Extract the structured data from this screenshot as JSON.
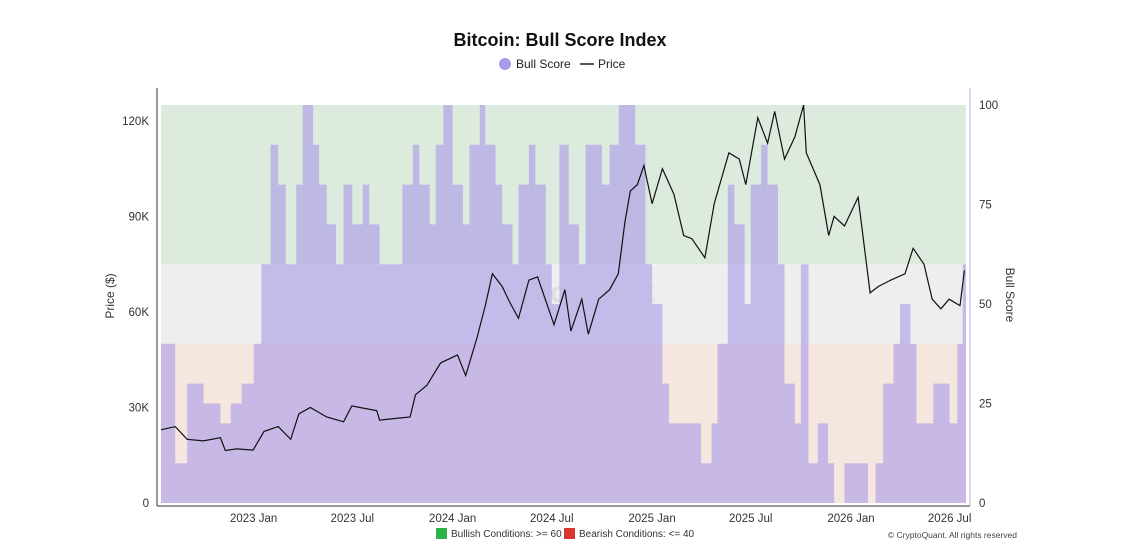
{
  "chart_data": {
    "type": "area",
    "title": "Bitcoin: Bull Score Index",
    "legend": [
      "Bull Score",
      "Price"
    ],
    "legend_placement": "top-center",
    "x_ticks": [
      "2023 Jan",
      "2023 Jul",
      "2024 Jan",
      "2024 Jul",
      "2025 Jan",
      "2025 Jul",
      "2026 Jan",
      "2026 Jul"
    ],
    "left_axis": {
      "label": "Price ($)",
      "ticks": [
        "0",
        "30K",
        "60K",
        "90K",
        "120K"
      ],
      "range": [
        0,
        125000
      ]
    },
    "right_axis": {
      "label": "Bull Score",
      "ticks": [
        "0",
        "25",
        "50",
        "75",
        "100"
      ],
      "range": [
        0,
        100
      ]
    },
    "zones": [
      {
        "name": "bullish",
        "from": 60,
        "to": 100,
        "color": "#dcebde"
      },
      {
        "name": "neutral",
        "from": 40,
        "to": 60,
        "color": "#eeeeee"
      },
      {
        "name": "bearish",
        "from": 0,
        "to": 40,
        "color": "#f6e6e0"
      }
    ],
    "series": [
      {
        "name": "Bull Score",
        "axis": "right",
        "color": "#a99be8",
        "points": [
          [
            "2022-07-15",
            40
          ],
          [
            "2022-08-01",
            40
          ],
          [
            "2022-08-10",
            10
          ],
          [
            "2022-09-01",
            30
          ],
          [
            "2022-10-01",
            25
          ],
          [
            "2022-11-01",
            20
          ],
          [
            "2022-11-20",
            25
          ],
          [
            "2022-12-10",
            30
          ],
          [
            "2023-01-01",
            40
          ],
          [
            "2023-01-15",
            60
          ],
          [
            "2023-02-01",
            90
          ],
          [
            "2023-02-15",
            80
          ],
          [
            "2023-03-01",
            60
          ],
          [
            "2023-03-20",
            80
          ],
          [
            "2023-04-01",
            100
          ],
          [
            "2023-04-20",
            90
          ],
          [
            "2023-05-01",
            80
          ],
          [
            "2023-05-15",
            70
          ],
          [
            "2023-06-01",
            60
          ],
          [
            "2023-06-15",
            80
          ],
          [
            "2023-07-01",
            70
          ],
          [
            "2023-07-20",
            80
          ],
          [
            "2023-08-01",
            70
          ],
          [
            "2023-08-20",
            60
          ],
          [
            "2023-09-01",
            60
          ],
          [
            "2023-10-01",
            80
          ],
          [
            "2023-10-20",
            90
          ],
          [
            "2023-11-01",
            80
          ],
          [
            "2023-11-20",
            70
          ],
          [
            "2023-12-01",
            90
          ],
          [
            "2023-12-15",
            100
          ],
          [
            "2024-01-01",
            80
          ],
          [
            "2024-01-20",
            70
          ],
          [
            "2024-02-01",
            90
          ],
          [
            "2024-02-20",
            100
          ],
          [
            "2024-03-01",
            90
          ],
          [
            "2024-03-20",
            80
          ],
          [
            "2024-04-01",
            70
          ],
          [
            "2024-04-20",
            60
          ],
          [
            "2024-05-01",
            80
          ],
          [
            "2024-05-20",
            90
          ],
          [
            "2024-06-01",
            80
          ],
          [
            "2024-06-20",
            60
          ],
          [
            "2024-07-01",
            50
          ],
          [
            "2024-07-15",
            90
          ],
          [
            "2024-08-01",
            70
          ],
          [
            "2024-08-20",
            60
          ],
          [
            "2024-09-01",
            90
          ],
          [
            "2024-10-01",
            80
          ],
          [
            "2024-10-15",
            90
          ],
          [
            "2024-11-01",
            100
          ],
          [
            "2024-11-20",
            100
          ],
          [
            "2024-12-01",
            90
          ],
          [
            "2024-12-20",
            60
          ],
          [
            "2025-01-01",
            50
          ],
          [
            "2025-01-20",
            30
          ],
          [
            "2025-02-01",
            20
          ],
          [
            "2025-03-01",
            20
          ],
          [
            "2025-04-01",
            10
          ],
          [
            "2025-04-20",
            20
          ],
          [
            "2025-05-01",
            40
          ],
          [
            "2025-05-20",
            80
          ],
          [
            "2025-06-01",
            70
          ],
          [
            "2025-06-20",
            50
          ],
          [
            "2025-07-01",
            80
          ],
          [
            "2025-07-20",
            90
          ],
          [
            "2025-08-01",
            80
          ],
          [
            "2025-08-20",
            60
          ],
          [
            "2025-09-01",
            30
          ],
          [
            "2025-09-20",
            20
          ],
          [
            "2025-10-01",
            60
          ],
          [
            "2025-10-15",
            10
          ],
          [
            "2025-11-01",
            20
          ],
          [
            "2025-11-20",
            10
          ],
          [
            "2025-12-01",
            0
          ],
          [
            "2025-12-20",
            10
          ],
          [
            "2026-01-01",
            10
          ],
          [
            "2026-01-20",
            10
          ],
          [
            "2026-02-01",
            0
          ],
          [
            "2026-02-15",
            10
          ],
          [
            "2026-03-01",
            30
          ],
          [
            "2026-03-20",
            40
          ],
          [
            "2026-04-01",
            50
          ],
          [
            "2026-04-20",
            40
          ],
          [
            "2026-05-01",
            20
          ],
          [
            "2026-05-20",
            20
          ],
          [
            "2026-06-01",
            30
          ],
          [
            "2026-06-20",
            30
          ],
          [
            "2026-07-01",
            20
          ],
          [
            "2026-07-15",
            40
          ],
          [
            "2026-07-25",
            60
          ]
        ]
      },
      {
        "name": "Price",
        "axis": "left",
        "color": "#111111",
        "points": [
          [
            "2022-07-15",
            23000
          ],
          [
            "2022-08-10",
            24000
          ],
          [
            "2022-09-01",
            20000
          ],
          [
            "2022-10-01",
            19500
          ],
          [
            "2022-11-01",
            20500
          ],
          [
            "2022-11-10",
            16500
          ],
          [
            "2022-12-01",
            17000
          ],
          [
            "2022-12-31",
            16600
          ],
          [
            "2023-01-20",
            22500
          ],
          [
            "2023-02-15",
            24000
          ],
          [
            "2023-03-10",
            20000
          ],
          [
            "2023-03-25",
            28000
          ],
          [
            "2023-04-15",
            30000
          ],
          [
            "2023-05-15",
            27000
          ],
          [
            "2023-06-15",
            25500
          ],
          [
            "2023-06-30",
            30500
          ],
          [
            "2023-07-15",
            30000
          ],
          [
            "2023-08-15",
            29000
          ],
          [
            "2023-08-20",
            26000
          ],
          [
            "2023-09-15",
            26500
          ],
          [
            "2023-10-15",
            27000
          ],
          [
            "2023-10-25",
            34000
          ],
          [
            "2023-11-15",
            37000
          ],
          [
            "2023-12-10",
            44000
          ],
          [
            "2024-01-10",
            46500
          ],
          [
            "2024-01-25",
            40000
          ],
          [
            "2024-02-15",
            52000
          ],
          [
            "2024-03-01",
            62000
          ],
          [
            "2024-03-14",
            72000
          ],
          [
            "2024-04-01",
            68000
          ],
          [
            "2024-04-15",
            63000
          ],
          [
            "2024-05-01",
            58000
          ],
          [
            "2024-05-20",
            70000
          ],
          [
            "2024-06-05",
            71000
          ],
          [
            "2024-07-05",
            56000
          ],
          [
            "2024-07-25",
            67000
          ],
          [
            "2024-08-05",
            54000
          ],
          [
            "2024-08-25",
            64000
          ],
          [
            "2024-09-06",
            53000
          ],
          [
            "2024-09-25",
            64000
          ],
          [
            "2024-10-15",
            67000
          ],
          [
            "2024-10-31",
            72000
          ],
          [
            "2024-11-12",
            88000
          ],
          [
            "2024-11-22",
            98000
          ],
          [
            "2024-12-05",
            100000
          ],
          [
            "2024-12-17",
            106000
          ],
          [
            "2025-01-01",
            94000
          ],
          [
            "2025-01-20",
            105000
          ],
          [
            "2025-02-10",
            97000
          ],
          [
            "2025-02-28",
            84000
          ],
          [
            "2025-03-15",
            83000
          ],
          [
            "2025-04-08",
            77000
          ],
          [
            "2025-04-25",
            94000
          ],
          [
            "2025-05-22",
            110000
          ],
          [
            "2025-06-10",
            108000
          ],
          [
            "2025-06-22",
            100000
          ],
          [
            "2025-07-14",
            121000
          ],
          [
            "2025-08-01",
            113000
          ],
          [
            "2025-08-14",
            123000
          ],
          [
            "2025-09-01",
            108000
          ],
          [
            "2025-09-20",
            115000
          ],
          [
            "2025-10-06",
            125000
          ],
          [
            "2025-10-11",
            110000
          ],
          [
            "2025-11-05",
            100000
          ],
          [
            "2025-11-21",
            84000
          ],
          [
            "2025-12-01",
            90000
          ],
          [
            "2025-12-20",
            87000
          ],
          [
            "2026-01-14",
            96000
          ],
          [
            "2026-02-05",
            66000
          ],
          [
            "2026-02-20",
            68000
          ],
          [
            "2026-03-15",
            70000
          ],
          [
            "2026-04-10",
            72000
          ],
          [
            "2026-04-25",
            80000
          ],
          [
            "2026-05-15",
            75000
          ],
          [
            "2026-05-30",
            64000
          ],
          [
            "2026-06-15",
            61000
          ],
          [
            "2026-06-30",
            64000
          ],
          [
            "2026-07-20",
            62000
          ],
          [
            "2026-07-28",
            73000
          ]
        ]
      }
    ],
    "conditions": [
      {
        "label": "Bullish Conditions: >= 60",
        "color": "#2bb34a"
      },
      {
        "label": "Bearish Conditions: <= 40",
        "color": "#d6362f"
      }
    ],
    "watermark": "CryptoQuant",
    "credit": "© CryptoQuant. All rights reserved"
  }
}
